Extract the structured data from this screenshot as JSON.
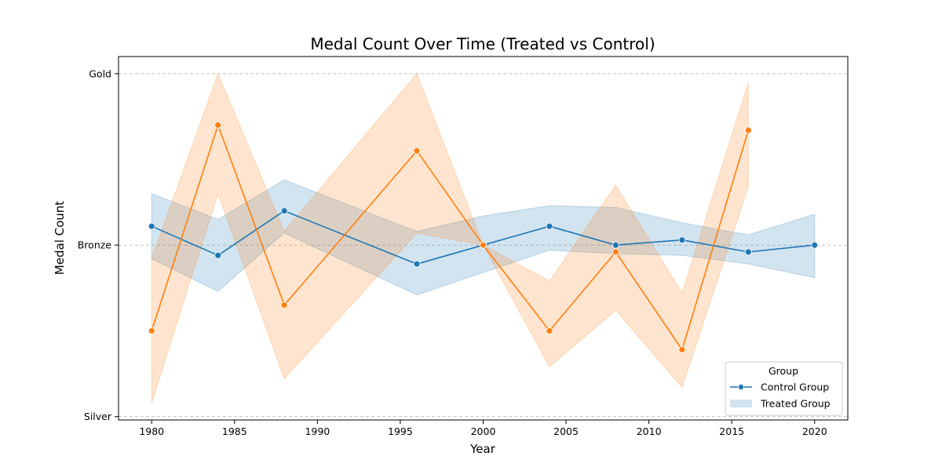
{
  "chart_data": {
    "type": "line",
    "title": "Medal Count Over Time (Treated vs Control)",
    "xlabel": "Year",
    "ylabel": "Medal Count",
    "xlim": [
      1978,
      2022
    ],
    "ylim": [
      -0.02,
      2.1
    ],
    "x_ticks": [
      1980,
      1985,
      1990,
      1995,
      2000,
      2005,
      2010,
      2015,
      2020
    ],
    "y_ticks": [
      {
        "value": 0,
        "label": "Silver"
      },
      {
        "value": 1,
        "label": "Bronze"
      },
      {
        "value": 2,
        "label": "Gold"
      }
    ],
    "grid": "y-dashed",
    "legend": {
      "title": "Group",
      "placement": "lower-right"
    },
    "series": [
      {
        "name": "Control Group",
        "color": "#1f77b4",
        "x": [
          1980,
          1984,
          1988,
          1996,
          2000,
          2004,
          2008,
          2012,
          2016,
          2020
        ],
        "y": [
          1.11,
          0.94,
          1.2,
          0.89,
          1.0,
          1.11,
          1.0,
          1.03,
          0.96,
          1.0
        ],
        "band_lower": [
          0.92,
          0.73,
          1.07,
          0.71,
          0.84,
          0.97,
          0.95,
          0.94,
          0.89,
          0.81
        ],
        "band_upper": [
          1.3,
          1.15,
          1.38,
          1.08,
          1.17,
          1.23,
          1.22,
          1.13,
          1.06,
          1.18
        ]
      },
      {
        "name": "Treated Group",
        "color": "#ff7f0e",
        "x": [
          1980,
          1984,
          1988,
          1996,
          2000,
          2004,
          2008,
          2012,
          2016
        ],
        "y": [
          0.5,
          1.7,
          0.65,
          1.55,
          1.0,
          0.5,
          0.96,
          0.39,
          1.67
        ],
        "band_lower": [
          0.08,
          1.3,
          0.22,
          1.07,
          1.0,
          0.29,
          0.62,
          0.17,
          1.34
        ],
        "band_upper": [
          0.92,
          2.0,
          1.08,
          2.0,
          1.0,
          0.79,
          1.35,
          0.72,
          1.95
        ]
      }
    ]
  }
}
